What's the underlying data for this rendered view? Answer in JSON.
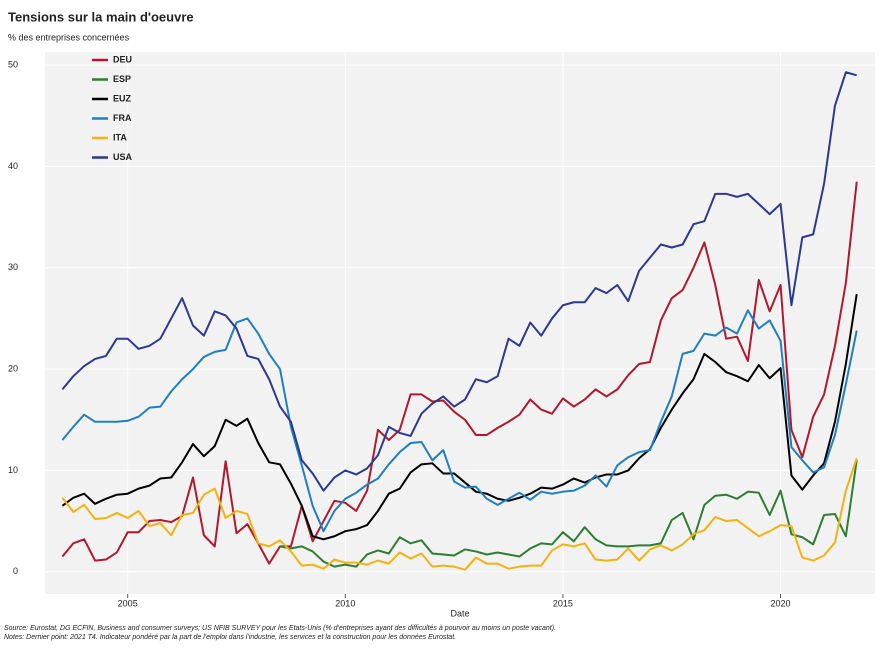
{
  "chart_data": {
    "type": "line",
    "title": "Tensions sur la main d'oeuvre",
    "subtitle": "% des entreprises concernées",
    "x_label": "Date",
    "source": "Source: Eurostat, DG ECFIN, Business and consumer surveys; US NFIB SURVEY pour les Etats-Unis (% d'entreprises ayant des difficultés à pourvoir au moins un poste vacant).",
    "notes": "Notes: Dernier point: 2021 T4. Indicateur pondéré par la part de l'emploi dans l'industrie, les services et la construction pour les données Eurostat.",
    "x": [
      2003.5,
      2003.75,
      2004,
      2004.25,
      2004.5,
      2004.75,
      2005,
      2005.25,
      2005.5,
      2005.75,
      2006,
      2006.25,
      2006.5,
      2006.75,
      2007,
      2007.25,
      2007.5,
      2007.75,
      2008,
      2008.25,
      2008.5,
      2008.75,
      2009,
      2009.25,
      2009.5,
      2009.75,
      2010,
      2010.25,
      2010.5,
      2010.75,
      2011,
      2011.25,
      2011.5,
      2011.75,
      2012,
      2012.25,
      2012.5,
      2012.75,
      2013,
      2013.25,
      2013.5,
      2013.75,
      2014,
      2014.25,
      2014.5,
      2014.75,
      2015,
      2015.25,
      2015.5,
      2015.75,
      2016,
      2016.25,
      2016.5,
      2016.75,
      2017,
      2017.25,
      2017.5,
      2017.75,
      2018,
      2018.25,
      2018.5,
      2018.75,
      2019,
      2019.25,
      2019.5,
      2019.75,
      2020,
      2020.25,
      2020.5,
      2020.75,
      2021,
      2021.25,
      2021.5,
      2021.75
    ],
    "xlim": [
      2003.1,
      2022.17
    ],
    "xticks": [
      2005,
      2010,
      2015,
      2020
    ],
    "ylim": [
      -2.2,
      51.3
    ],
    "yticks": [
      0,
      10,
      20,
      30,
      40,
      50
    ],
    "grid": true,
    "legend": "upper-left",
    "series": [
      {
        "name": "DEU",
        "color": "#b2182b",
        "values": [
          1.5,
          2.8,
          3.2,
          1.1,
          1.2,
          1.9,
          3.9,
          3.9,
          5,
          5.1,
          4.9,
          5.5,
          9.3,
          3.6,
          2.5,
          10.9,
          3.8,
          4.7,
          2.8,
          0.8,
          2.5,
          2.5,
          6.5,
          3,
          5,
          7,
          6.8,
          6,
          8,
          14,
          13,
          14,
          17.5,
          17.5,
          16.8,
          16.9,
          15.8,
          15,
          13.5,
          13.5,
          14.2,
          14.8,
          15.5,
          17,
          16,
          15.6,
          17.1,
          16.3,
          17,
          18,
          17.3,
          18,
          19.4,
          20.5,
          20.7,
          24.8,
          27,
          27.8,
          30,
          32.5,
          28.3,
          23,
          23.2,
          20.8,
          28.8,
          25.7,
          28.3,
          14,
          11.3,
          15.3,
          17.5,
          22.3,
          28.5,
          38.5
        ]
      },
      {
        "name": "ESP",
        "color": "#2e7d32",
        "values": [
          null,
          null,
          null,
          null,
          null,
          null,
          null,
          null,
          null,
          null,
          null,
          null,
          null,
          null,
          null,
          null,
          null,
          null,
          null,
          null,
          2.5,
          2.3,
          2.5,
          2,
          1,
          0.5,
          0.7,
          0.5,
          1.7,
          2.1,
          1.8,
          3.4,
          2.8,
          3.1,
          1.8,
          1.7,
          1.6,
          2.2,
          2,
          1.7,
          1.9,
          1.7,
          1.5,
          2.3,
          2.8,
          2.7,
          3.9,
          3,
          4.4,
          3.2,
          2.6,
          2.5,
          2.5,
          2.6,
          2.6,
          2.8,
          5.1,
          5.8,
          3.2,
          6.6,
          7.5,
          7.6,
          7.2,
          7.9,
          7.8,
          5.6,
          8,
          3.7,
          3.4,
          2.7,
          5.6,
          5.7,
          3.5,
          11
        ]
      },
      {
        "name": "EUZ",
        "color": "#000000",
        "values": [
          6.5,
          7.3,
          7.7,
          6.7,
          7.2,
          7.6,
          7.7,
          8.2,
          8.5,
          9.2,
          9.3,
          10.8,
          12.6,
          11.4,
          12.4,
          15,
          14.4,
          15.1,
          12.7,
          10.8,
          10.6,
          8.7,
          6.5,
          3.5,
          3.2,
          3.5,
          4,
          4.2,
          4.6,
          6,
          7.7,
          8.2,
          9.8,
          10.6,
          10.7,
          9.7,
          9.7,
          8.8,
          7.9,
          7.7,
          7.2,
          7,
          7.3,
          7.7,
          8.3,
          8.2,
          8.6,
          9.2,
          8.8,
          9.3,
          9.6,
          9.6,
          10,
          11.2,
          12.1,
          14.2,
          16,
          17.6,
          19,
          21.5,
          20.7,
          19.7,
          19.3,
          18.8,
          20.4,
          19.1,
          20.1,
          9.5,
          8.1,
          9.5,
          10.7,
          14.8,
          20.5,
          27.4
        ]
      },
      {
        "name": "FRA",
        "color": "#1f7fc0",
        "values": [
          13,
          14.3,
          15.5,
          14.8,
          14.8,
          14.8,
          14.9,
          15.3,
          16.2,
          16.3,
          17.8,
          19,
          20,
          21.2,
          21.7,
          21.9,
          24.6,
          25,
          23.5,
          21.5,
          20,
          14.3,
          10.5,
          6.5,
          4,
          6,
          7.2,
          7.8,
          8.6,
          9.2,
          10.6,
          11.8,
          12.7,
          12.8,
          11,
          12,
          8.9,
          8.3,
          8.4,
          7.2,
          6.6,
          7.2,
          7.8,
          7.1,
          7.9,
          7.7,
          7.9,
          8,
          8.5,
          9.5,
          8.4,
          10.5,
          11.3,
          11.8,
          12,
          14.8,
          17.3,
          21.5,
          21.8,
          23.5,
          23.3,
          24.1,
          23.5,
          25.8,
          24,
          24.8,
          22.8,
          12.3,
          11,
          9.8,
          10.3,
          13.5,
          18.5,
          23.8
        ]
      },
      {
        "name": "ITA",
        "color": "#f2b20f",
        "values": [
          7.3,
          5.9,
          6.6,
          5.2,
          5.3,
          5.8,
          5.3,
          6,
          4.5,
          4.8,
          3.6,
          5.6,
          5.8,
          7.6,
          8.2,
          5.3,
          6,
          5.7,
          2.8,
          2.5,
          3.1,
          2,
          0.6,
          0.7,
          0.3,
          1.2,
          0.9,
          0.9,
          0.7,
          1.1,
          0.8,
          1.9,
          1.3,
          1.8,
          0.5,
          0.6,
          0.5,
          0.2,
          1.4,
          0.8,
          0.8,
          0.3,
          0.5,
          0.6,
          0.6,
          2.1,
          2.7,
          2.5,
          2.8,
          1.2,
          1.1,
          1.2,
          2.3,
          1.1,
          2.2,
          2.6,
          2.1,
          2.7,
          3.7,
          4.1,
          5.4,
          5,
          5.1,
          4.3,
          3.5,
          4,
          4.6,
          4.5,
          1.4,
          1.1,
          1.6,
          2.9,
          8,
          11.2
        ]
      },
      {
        "name": "USA",
        "color": "#2b3990",
        "values": [
          18,
          19.3,
          20.3,
          21,
          21.3,
          23,
          23,
          22,
          22.3,
          23,
          25,
          27,
          24.3,
          23.3,
          25.7,
          25.3,
          24,
          21.3,
          21,
          19,
          16.3,
          14.8,
          11,
          9.7,
          8,
          9.3,
          10,
          9.6,
          10.2,
          11.5,
          14.3,
          13.7,
          13.4,
          15.6,
          16.6,
          17.3,
          16.3,
          17,
          19,
          18.7,
          19.3,
          23,
          22.3,
          24.6,
          23.3,
          25,
          26.3,
          26.6,
          26.6,
          28,
          27.5,
          28.3,
          26.7,
          29.7,
          31,
          32.3,
          32,
          32.3,
          34.3,
          34.6,
          37.3,
          37.3,
          37,
          37.3,
          36.3,
          35.3,
          36.3,
          26.3,
          33,
          33.3,
          38.3,
          46,
          49.3,
          49
        ]
      }
    ]
  }
}
